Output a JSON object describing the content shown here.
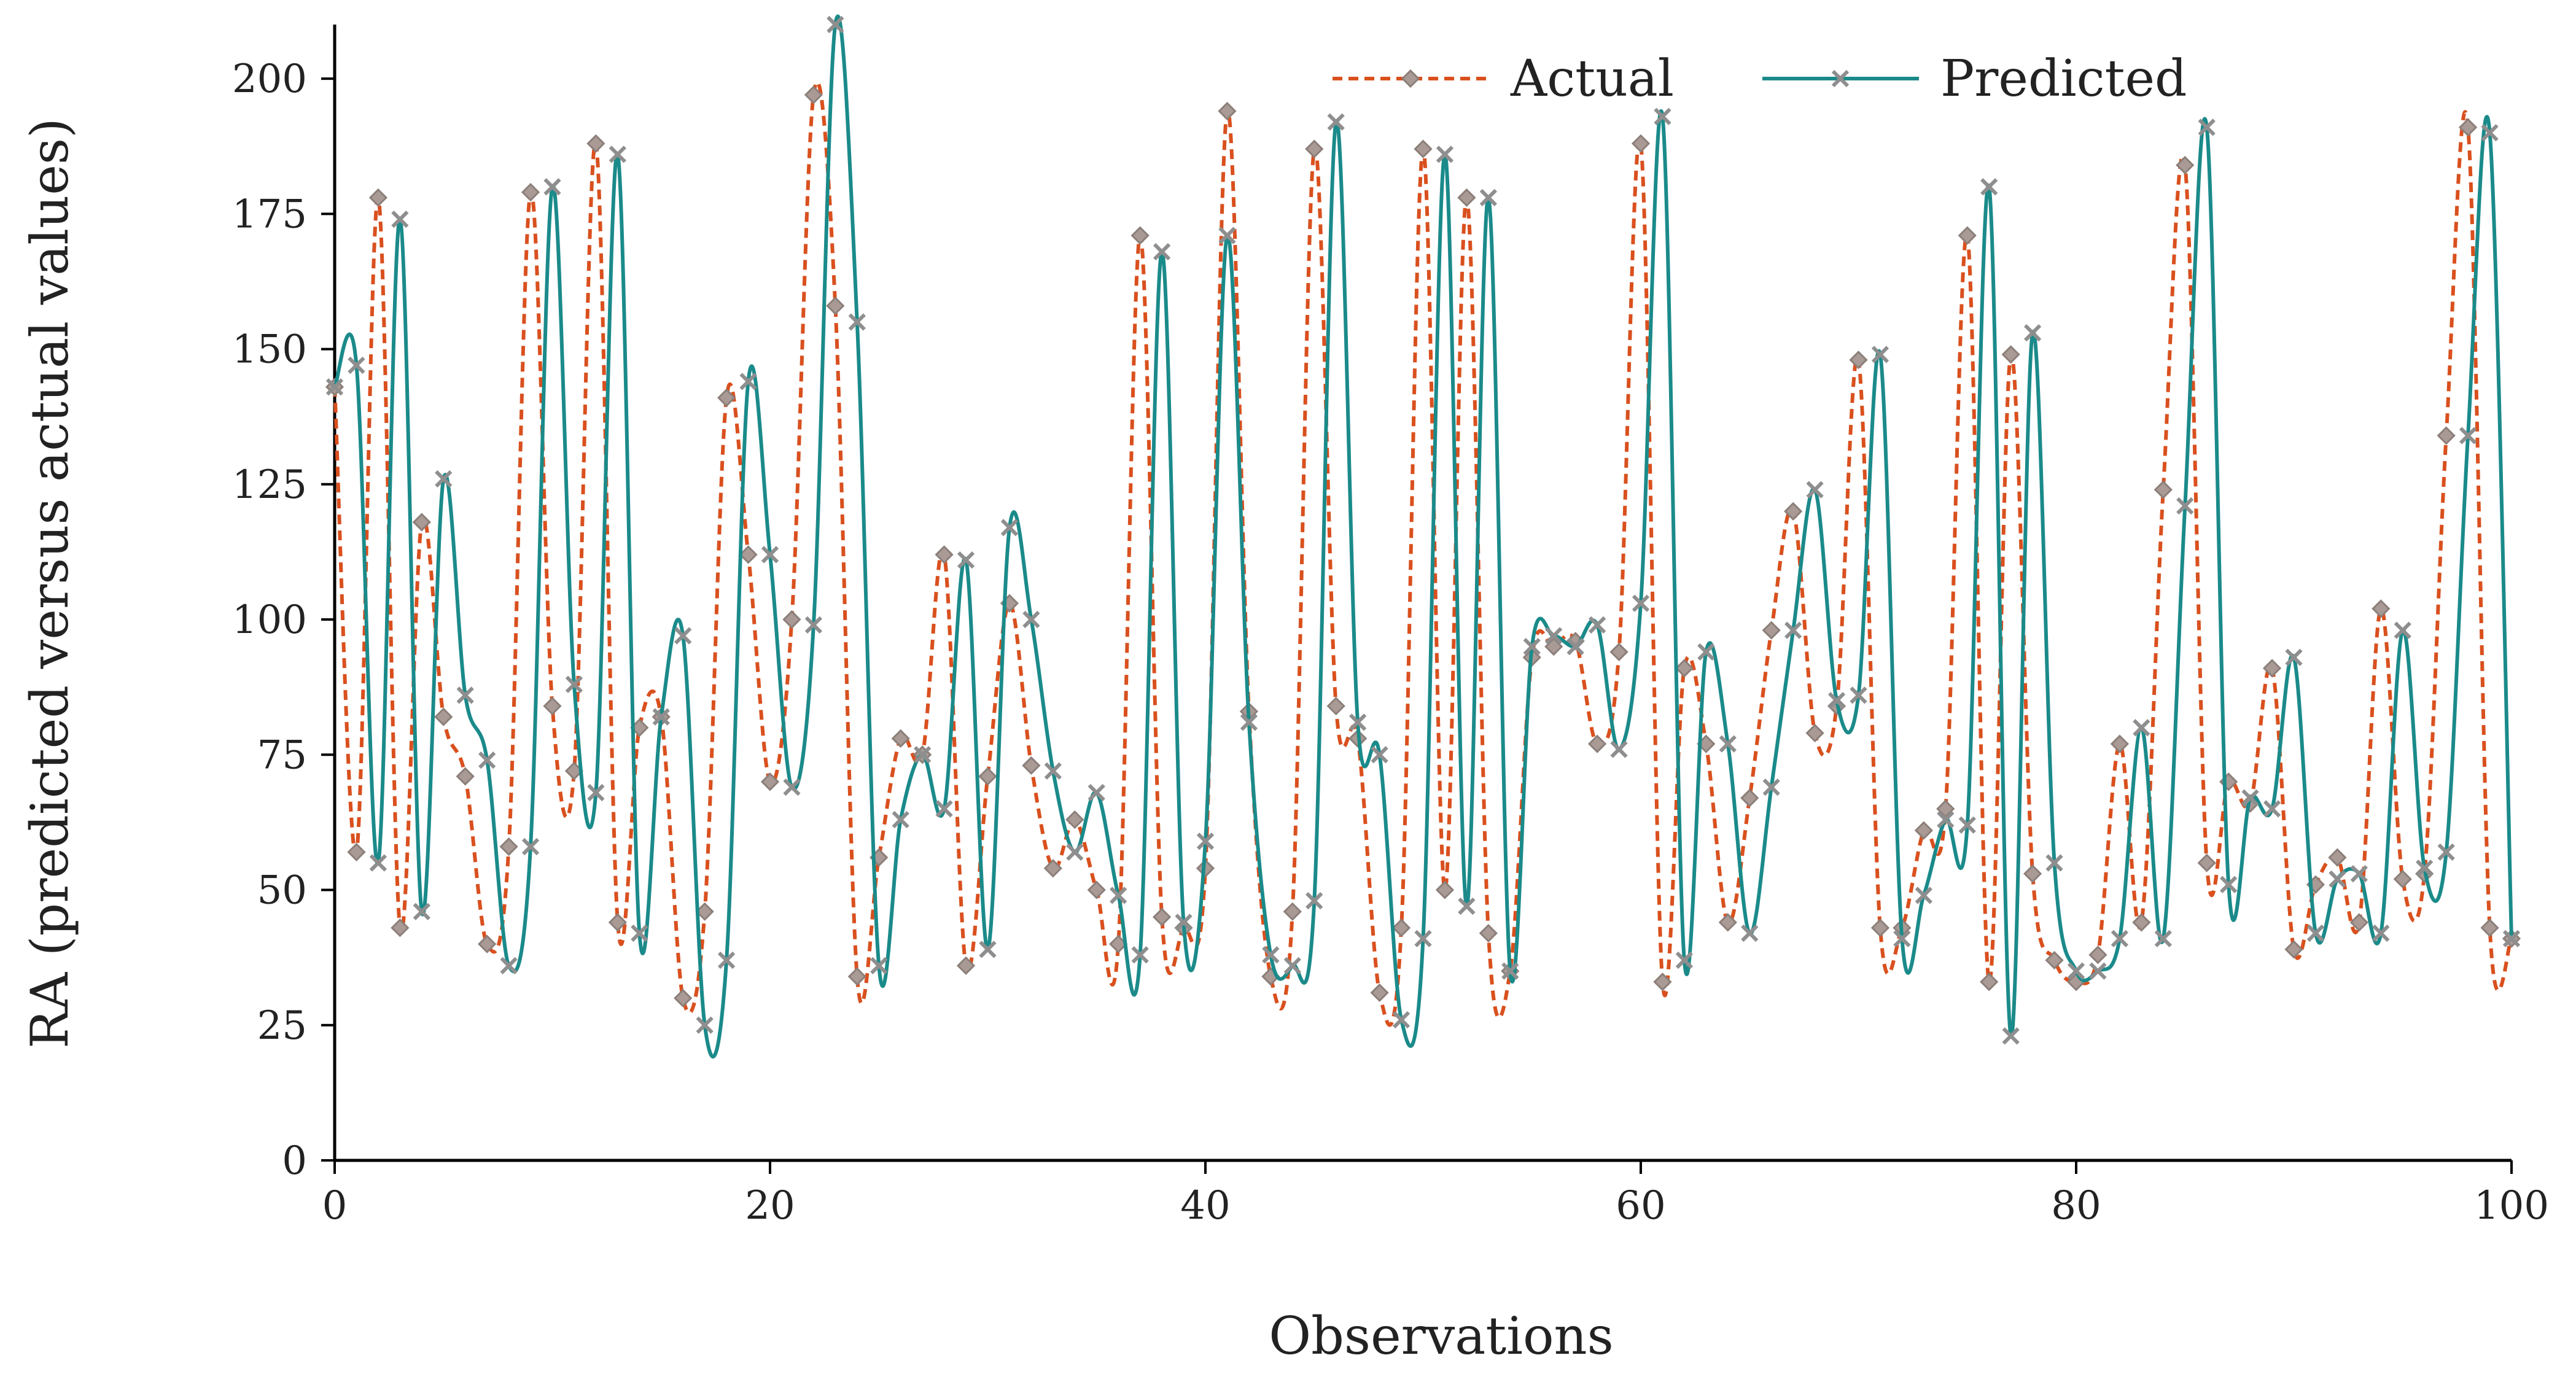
{
  "chart_data": {
    "type": "line",
    "title": "",
    "xlabel": "Observations",
    "ylabel": "RA (predicted versus actual values)",
    "xlim": [
      0,
      100
    ],
    "ylim": [
      0,
      210
    ],
    "x_ticks": [
      0,
      20,
      40,
      60,
      80,
      100
    ],
    "y_ticks": [
      0,
      25,
      50,
      75,
      100,
      125,
      150,
      175,
      200
    ],
    "grid": false,
    "legend_position": "top-right",
    "x": [
      0,
      1,
      2,
      3,
      4,
      5,
      6,
      7,
      8,
      9,
      10,
      11,
      12,
      13,
      14,
      15,
      16,
      17,
      18,
      19,
      20,
      21,
      22,
      23,
      24,
      25,
      26,
      27,
      28,
      29,
      30,
      31,
      32,
      33,
      34,
      35,
      36,
      37,
      38,
      39,
      40,
      41,
      42,
      43,
      44,
      45,
      46,
      47,
      48,
      49,
      50,
      51,
      52,
      53,
      54,
      55,
      56,
      57,
      58,
      59,
      60,
      61,
      62,
      63,
      64,
      65,
      66,
      67,
      68,
      69,
      70,
      71,
      72,
      73,
      74,
      75,
      76,
      77,
      78,
      79,
      80,
      81,
      82,
      83,
      84,
      85,
      86,
      87,
      88,
      89,
      90,
      91,
      92,
      93,
      94,
      95,
      96,
      97,
      98,
      99,
      100
    ],
    "series": [
      {
        "name": "Actual",
        "color": "#D9501E",
        "style": "dashed",
        "marker": "diamond",
        "values": [
          143,
          57,
          178,
          43,
          118,
          82,
          71,
          40,
          58,
          179,
          84,
          72,
          188,
          44,
          80,
          82,
          30,
          46,
          141,
          112,
          70,
          100,
          197,
          158,
          34,
          56,
          78,
          75,
          112,
          36,
          71,
          103,
          73,
          54,
          63,
          50,
          40,
          171,
          45,
          43,
          54,
          194,
          83,
          34,
          46,
          187,
          84,
          78,
          31,
          43,
          187,
          50,
          178,
          42,
          35,
          93,
          95,
          96,
          77,
          94,
          188,
          33,
          91,
          77,
          44,
          67,
          98,
          120,
          79,
          84,
          148,
          43,
          43,
          61,
          65,
          171,
          33,
          149,
          53,
          37,
          33,
          38,
          77,
          44,
          124,
          184,
          55,
          70,
          66,
          91,
          39,
          51,
          56,
          44,
          102,
          52,
          53,
          134,
          191,
          43,
          41
        ]
      },
      {
        "name": "Predicted",
        "color": "#1B8A8A",
        "style": "solid",
        "marker": "x",
        "values": [
          143,
          147,
          55,
          174,
          46,
          126,
          86,
          74,
          36,
          58,
          180,
          88,
          68,
          186,
          42,
          82,
          97,
          25,
          37,
          144,
          112,
          69,
          99,
          210,
          155,
          36,
          63,
          75,
          65,
          111,
          39,
          117,
          100,
          72,
          57,
          68,
          49,
          38,
          168,
          44,
          59,
          171,
          81,
          38,
          36,
          48,
          192,
          81,
          75,
          26,
          41,
          186,
          47,
          178,
          35,
          95,
          97,
          95,
          99,
          76,
          103,
          193,
          37,
          94,
          77,
          42,
          69,
          98,
          124,
          85,
          86,
          149,
          41,
          49,
          63,
          62,
          180,
          23,
          153,
          55,
          35,
          35,
          41,
          80,
          41,
          121,
          191,
          51,
          67,
          65,
          93,
          42,
          52,
          53,
          42,
          98,
          54,
          57,
          134,
          190,
          41
        ]
      }
    ]
  }
}
